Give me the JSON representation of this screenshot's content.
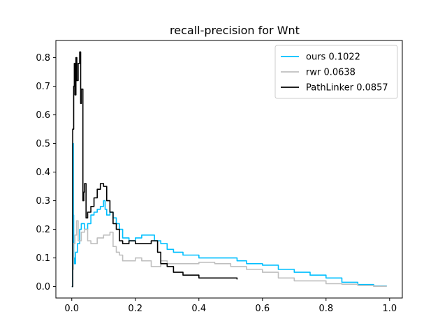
{
  "chart_data": {
    "type": "line",
    "title": "recall-precision for Wnt",
    "xlabel": "",
    "ylabel": "",
    "xlim": [
      -0.05,
      1.04
    ],
    "ylim": [
      -0.04,
      0.86
    ],
    "xticks": [
      0.0,
      0.2,
      0.4,
      0.6,
      0.8,
      1.0
    ],
    "xtick_labels": [
      "0.0",
      "0.2",
      "0.4",
      "0.6",
      "0.8",
      "1.0"
    ],
    "yticks": [
      0.0,
      0.1,
      0.2,
      0.3,
      0.4,
      0.5,
      0.6,
      0.7,
      0.8
    ],
    "ytick_labels": [
      "0.0",
      "0.1",
      "0.2",
      "0.3",
      "0.4",
      "0.5",
      "0.6",
      "0.7",
      "0.8"
    ],
    "grid": false,
    "legend_position": "top-right",
    "series": [
      {
        "name": "ours 0.1022",
        "color": "#00bfff",
        "x": [
          0.0,
          0.003,
          0.005,
          0.006,
          0.008,
          0.012,
          0.018,
          0.025,
          0.03,
          0.04,
          0.05,
          0.06,
          0.07,
          0.08,
          0.09,
          0.1,
          0.105,
          0.11,
          0.12,
          0.13,
          0.14,
          0.15,
          0.16,
          0.18,
          0.2,
          0.22,
          0.24,
          0.26,
          0.28,
          0.3,
          0.32,
          0.35,
          0.4,
          0.45,
          0.5,
          0.52,
          0.55,
          0.6,
          0.65,
          0.7,
          0.75,
          0.8,
          0.85,
          0.9,
          0.95,
          0.99
        ],
        "y": [
          0.0,
          0.5,
          0.25,
          0.1,
          0.08,
          0.12,
          0.15,
          0.2,
          0.22,
          0.2,
          0.22,
          0.25,
          0.26,
          0.27,
          0.28,
          0.3,
          0.27,
          0.25,
          0.26,
          0.24,
          0.22,
          0.2,
          0.17,
          0.16,
          0.17,
          0.18,
          0.18,
          0.16,
          0.15,
          0.13,
          0.12,
          0.11,
          0.1,
          0.1,
          0.1,
          0.09,
          0.08,
          0.075,
          0.06,
          0.05,
          0.04,
          0.03,
          0.015,
          0.007,
          0.002,
          0.0
        ]
      },
      {
        "name": "rwr 0.0638",
        "color": "#bfbfbf",
        "x": [
          0.0,
          0.005,
          0.01,
          0.015,
          0.02,
          0.03,
          0.04,
          0.05,
          0.06,
          0.08,
          0.1,
          0.12,
          0.13,
          0.14,
          0.15,
          0.16,
          0.2,
          0.22,
          0.25,
          0.28,
          0.3,
          0.35,
          0.4,
          0.45,
          0.5,
          0.55,
          0.6,
          0.65,
          0.7,
          0.75,
          0.8,
          0.85,
          0.9,
          0.95,
          0.99
        ],
        "y": [
          0.06,
          0.15,
          0.18,
          0.23,
          0.16,
          0.19,
          0.2,
          0.16,
          0.15,
          0.17,
          0.18,
          0.19,
          0.14,
          0.12,
          0.11,
          0.09,
          0.1,
          0.09,
          0.07,
          0.09,
          0.08,
          0.08,
          0.085,
          0.08,
          0.07,
          0.06,
          0.05,
          0.03,
          0.02,
          0.02,
          0.01,
          0.008,
          0.004,
          0.001,
          0.0
        ]
      },
      {
        "name": "PathLinker 0.0857",
        "color": "#000000",
        "x": [
          0.0,
          0.003,
          0.006,
          0.008,
          0.01,
          0.013,
          0.016,
          0.02,
          0.025,
          0.028,
          0.03,
          0.035,
          0.038,
          0.04,
          0.045,
          0.05,
          0.06,
          0.07,
          0.08,
          0.09,
          0.1,
          0.11,
          0.12,
          0.13,
          0.14,
          0.15,
          0.16,
          0.18,
          0.2,
          0.22,
          0.25,
          0.27,
          0.28,
          0.3,
          0.32,
          0.35,
          0.4,
          0.45,
          0.5,
          0.52
        ],
        "y": [
          0.0,
          0.55,
          0.7,
          0.78,
          0.67,
          0.8,
          0.72,
          0.78,
          0.82,
          0.64,
          0.69,
          0.3,
          0.33,
          0.36,
          0.24,
          0.26,
          0.28,
          0.31,
          0.34,
          0.36,
          0.35,
          0.3,
          0.26,
          0.22,
          0.2,
          0.16,
          0.15,
          0.16,
          0.15,
          0.15,
          0.16,
          0.12,
          0.08,
          0.07,
          0.05,
          0.04,
          0.03,
          0.03,
          0.03,
          0.025
        ]
      }
    ]
  }
}
